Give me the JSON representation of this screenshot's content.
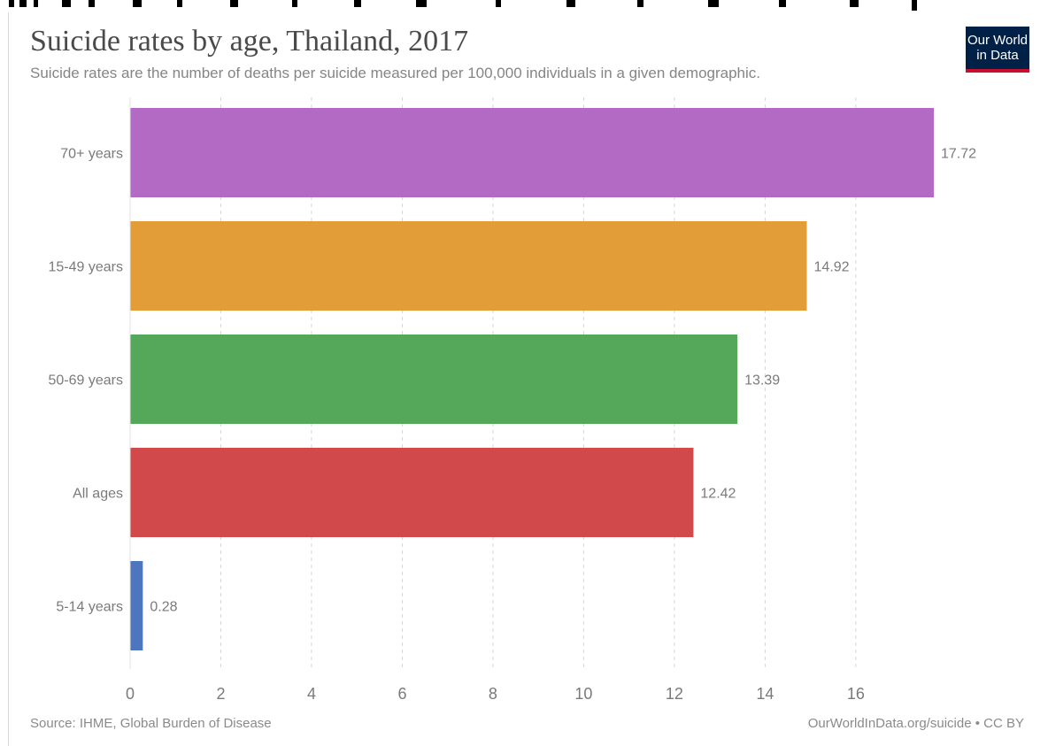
{
  "title": "Suicide rates by age, Thailand, 2017",
  "subtitle": "Suicide rates are the number of deaths per suicide measured per 100,000 individuals in a given demographic.",
  "logo": {
    "line1": "Our World",
    "line2": "in Data"
  },
  "footer": {
    "source": "Source: IHME, Global Burden of Disease",
    "link": "OurWorldInData.org/suicide • CC BY"
  },
  "chart_data": {
    "type": "bar",
    "orientation": "horizontal",
    "title": "Suicide rates by age, Thailand, 2017",
    "categories": [
      "70+ years",
      "15-49 years",
      "50-69 years",
      "All ages",
      "5-14 years"
    ],
    "values": [
      17.72,
      14.92,
      13.39,
      12.42,
      0.28
    ],
    "value_labels": [
      "17.72",
      "14.92",
      "13.39",
      "12.42",
      "0.28"
    ],
    "colors": [
      "#b36ac4",
      "#e29d38",
      "#55a75a",
      "#d2494b",
      "#4e76bf"
    ],
    "xlim": [
      0,
      17.72
    ],
    "x_ticks": [
      0,
      2,
      4,
      6,
      8,
      10,
      12,
      14,
      16
    ],
    "grid": "vertical dashed",
    "xlabel": "",
    "ylabel": ""
  }
}
